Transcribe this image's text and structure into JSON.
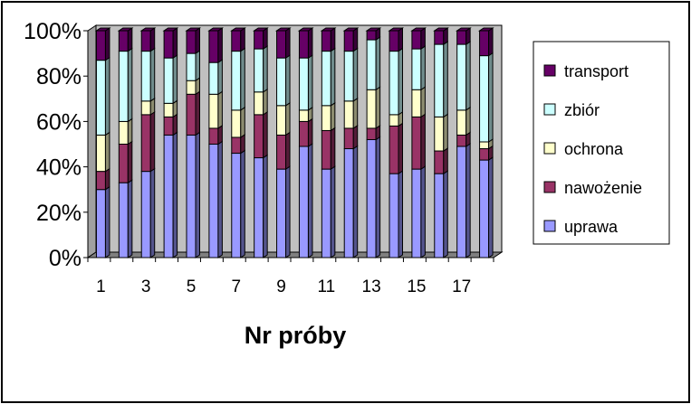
{
  "chart_data": {
    "type": "bar",
    "stacked": true,
    "percent": true,
    "view": "3d",
    "xlabel": "Nr próby",
    "ylabel": "",
    "title": "",
    "ylim": [
      0,
      100
    ],
    "y_ticks": [
      "0%",
      "20%",
      "40%",
      "60%",
      "80%",
      "100%"
    ],
    "x_tick_labels": [
      "1",
      "3",
      "5",
      "7",
      "9",
      "11",
      "13",
      "15",
      "17"
    ],
    "categories": [
      "1",
      "2",
      "3",
      "4",
      "5",
      "6",
      "7",
      "8",
      "9",
      "10",
      "11",
      "12",
      "13",
      "14",
      "15",
      "16",
      "17",
      "18"
    ],
    "series": [
      {
        "name": "uprawa",
        "color": "#9999ff",
        "values": [
          30,
          33,
          38,
          54,
          54,
          50,
          46,
          44,
          39,
          49,
          39,
          48,
          52,
          37,
          39,
          37,
          49,
          43
        ]
      },
      {
        "name": "nawożenie",
        "color": "#993366",
        "values": [
          8,
          17,
          25,
          8,
          18,
          7,
          7,
          19,
          15,
          11,
          17,
          9,
          5,
          21,
          23,
          10,
          5,
          5
        ]
      },
      {
        "name": "ochrona",
        "color": "#ffffcc",
        "values": [
          16,
          10,
          6,
          6,
          6,
          15,
          12,
          10,
          13,
          5,
          11,
          12,
          17,
          5,
          12,
          15,
          11,
          3
        ]
      },
      {
        "name": "zbiór",
        "color": "#ccffff",
        "values": [
          33,
          31,
          22,
          20,
          12,
          14,
          26,
          19,
          21,
          23,
          24,
          22,
          22,
          28,
          18,
          32,
          29,
          38
        ]
      },
      {
        "name": "transport",
        "color": "#660066",
        "values": [
          13,
          9,
          9,
          12,
          10,
          14,
          9,
          8,
          12,
          12,
          9,
          9,
          4,
          9,
          8,
          6,
          6,
          11
        ]
      }
    ],
    "legend_position": "right",
    "legend_order": [
      "transport",
      "zbiór",
      "ochrona",
      "nawożenie",
      "uprawa"
    ],
    "wall_color": "#c0c0c0",
    "grid": false
  }
}
